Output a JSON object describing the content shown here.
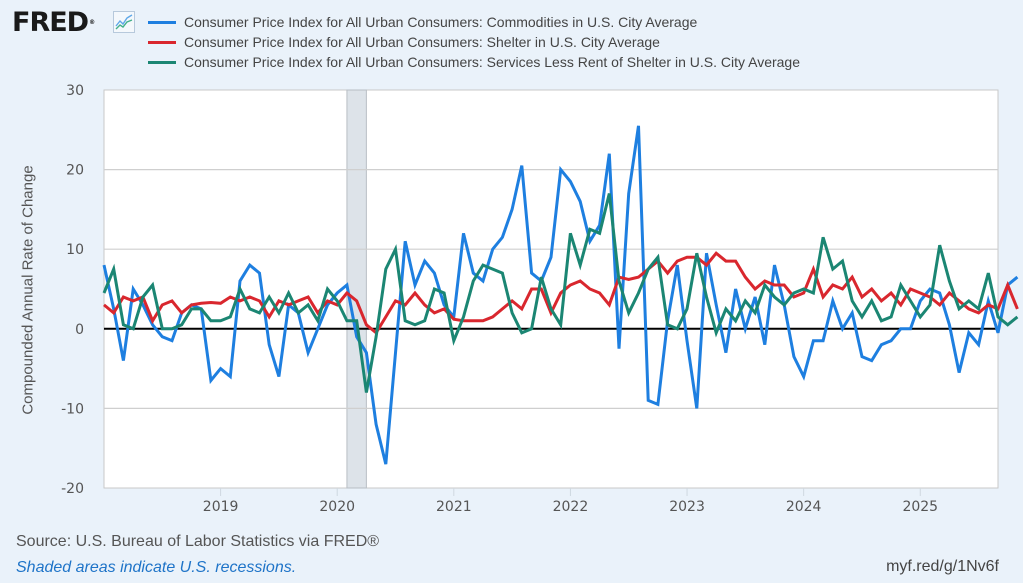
{
  "header": {
    "logo_text": "FRED",
    "logo_reg": "®",
    "logo_icon": "line-chart-icon"
  },
  "colors": {
    "commodities": "#1e7fe0",
    "shelter": "#d9272e",
    "services": "#1b8673",
    "recession": "#dde3e9",
    "background": "#eaf2fa"
  },
  "footer": {
    "source": "Source: U.S. Bureau of Labor Statistics via FRED®",
    "recession_note": "Shaded areas indicate U.S. recessions.",
    "short_url": "myf.red/g/1Nv6f"
  },
  "chart_data": {
    "type": "line",
    "title": "",
    "xlabel": "",
    "ylabel": "Compounded Annual Rate of Change",
    "ylim": [
      -20,
      30
    ],
    "yticks": [
      -20,
      -10,
      0,
      10,
      20,
      30
    ],
    "ytick_labels": [
      "-20",
      "-10",
      "0",
      "10",
      "20",
      "30"
    ],
    "xrange": [
      "2018-01",
      "2025-09"
    ],
    "xticks": [
      "2019",
      "2020",
      "2021",
      "2022",
      "2023",
      "2024",
      "2025"
    ],
    "grid": true,
    "legend": "top",
    "frequency": "monthly",
    "recessions": [
      {
        "start": "2020-02",
        "end": "2020-04"
      }
    ],
    "series": [
      {
        "name": "Consumer Price Index for All Urban Consumers: Commodities in U.S. City Average",
        "key": "commodities",
        "start": "2018-01",
        "values": [
          8.0,
          2.5,
          -4.0,
          5.0,
          3.0,
          0.5,
          -1.0,
          -1.5,
          2.0,
          3.0,
          2.5,
          -6.5,
          -5.0,
          -6.0,
          6.0,
          8.0,
          7.0,
          -2.0,
          -6.0,
          3.0,
          2.0,
          -3.0,
          0.0,
          3.0,
          4.5,
          5.5,
          -1.0,
          -3.0,
          -12.0,
          -17.0,
          -3.0,
          11.0,
          5.5,
          8.5,
          7.0,
          3.0,
          1.5,
          12.0,
          7.0,
          6.0,
          10.0,
          11.5,
          15.0,
          20.5,
          7.0,
          6.0,
          9.0,
          20.0,
          18.5,
          16.0,
          11.0,
          13.0,
          22.0,
          -2.5,
          17.0,
          25.5,
          -9.0,
          -9.5,
          1.0,
          8.0,
          -1.5,
          -10.0,
          9.5,
          3.0,
          -3.0,
          5.0,
          0.0,
          4.0,
          -2.0,
          8.0,
          3.0,
          -3.5,
          -6.0,
          -1.5,
          -1.5,
          3.5,
          0.0,
          2.0,
          -3.5,
          -4.0,
          -2.0,
          -1.5,
          0.0,
          0.0,
          3.5,
          5.0,
          4.5,
          0.5,
          -5.5,
          -0.5,
          -2.0,
          3.5,
          -0.5,
          5.5,
          6.5
        ]
      },
      {
        "name": "Consumer Price Index for All Urban Consumers: Shelter in U.S. City Average",
        "key": "shelter",
        "start": "2018-01",
        "values": [
          3.0,
          2.0,
          4.0,
          3.5,
          4.0,
          1.0,
          3.0,
          3.5,
          2.0,
          3.0,
          3.2,
          3.3,
          3.2,
          4.0,
          3.5,
          4.0,
          3.5,
          1.5,
          3.5,
          3.0,
          3.5,
          4.0,
          2.0,
          3.5,
          3.0,
          4.5,
          3.5,
          0.5,
          -0.5,
          1.5,
          3.5,
          3.0,
          4.5,
          3.0,
          2.0,
          2.5,
          1.2,
          1.0,
          1.0,
          1.0,
          1.5,
          2.5,
          3.5,
          2.5,
          5.0,
          5.0,
          2.0,
          4.5,
          5.5,
          6.0,
          5.0,
          4.5,
          3.0,
          6.5,
          6.2,
          6.5,
          7.5,
          8.5,
          7.0,
          8.5,
          9.0,
          9.0,
          8.0,
          9.5,
          8.5,
          8.5,
          6.5,
          5.0,
          6.0,
          5.5,
          5.5,
          4.0,
          4.5,
          7.5,
          4.0,
          5.5,
          5.0,
          6.5,
          4.0,
          5.0,
          3.5,
          4.5,
          3.0,
          5.0,
          4.5,
          4.0,
          3.0,
          4.5,
          3.5,
          2.5,
          2.0,
          3.0,
          2.5,
          5.5,
          2.5
        ]
      },
      {
        "name": "Consumer Price Index for All Urban Consumers: Services Less Rent of Shelter in U.S. City Average",
        "key": "services",
        "start": "2018-01",
        "values": [
          4.5,
          7.5,
          0.5,
          0.0,
          4.0,
          5.5,
          0.0,
          0.0,
          0.5,
          2.5,
          2.5,
          1.0,
          1.0,
          1.5,
          5.0,
          2.5,
          2.0,
          4.0,
          2.0,
          4.5,
          2.0,
          3.0,
          1.0,
          5.0,
          3.5,
          1.0,
          1.0,
          -8.0,
          -1.0,
          7.5,
          10.0,
          1.0,
          0.5,
          1.0,
          5.0,
          4.5,
          -1.5,
          1.5,
          6.0,
          8.0,
          7.5,
          7.0,
          2.0,
          -0.5,
          0.0,
          6.5,
          2.5,
          0.5,
          12.0,
          8.0,
          12.5,
          12.0,
          17.0,
          6.0,
          2.0,
          4.5,
          7.5,
          9.0,
          0.5,
          0.0,
          2.5,
          9.5,
          4.0,
          -0.5,
          2.5,
          1.0,
          3.5,
          2.0,
          5.5,
          4.0,
          3.0,
          4.5,
          5.0,
          4.5,
          11.5,
          7.5,
          8.5,
          3.5,
          1.5,
          3.5,
          1.0,
          1.5,
          5.5,
          3.5,
          1.5,
          3.0,
          10.5,
          6.0,
          2.5,
          3.5,
          2.5,
          7.0,
          1.5,
          0.5,
          1.5
        ]
      }
    ]
  }
}
